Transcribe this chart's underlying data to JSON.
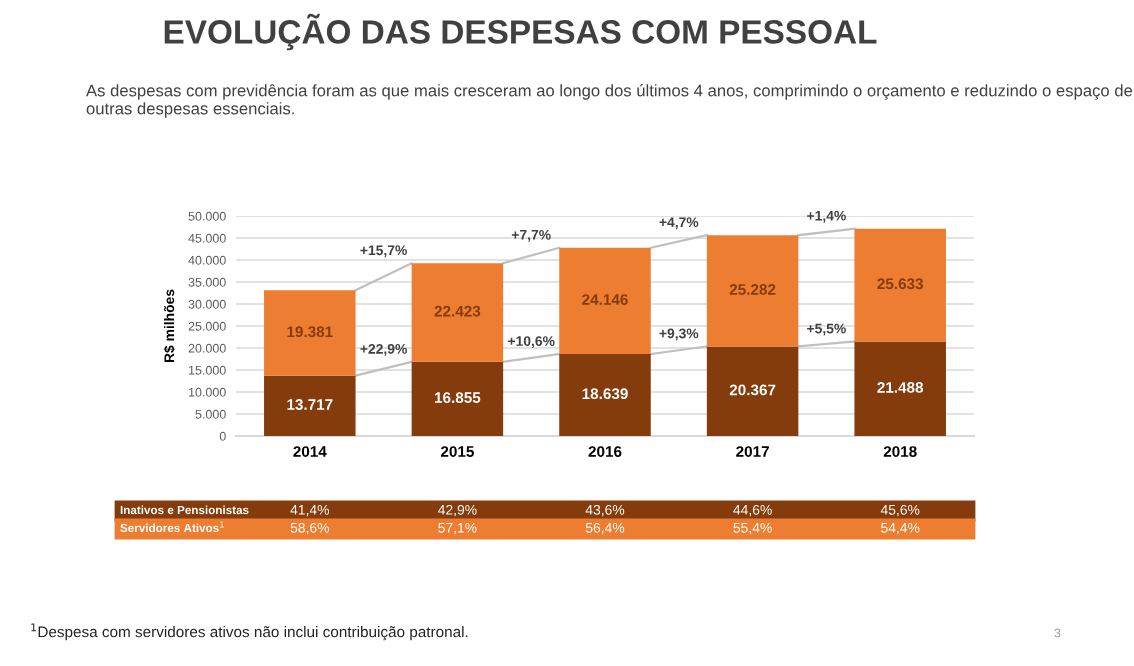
{
  "chart_data": {
    "type": "bar",
    "stacked": true,
    "title": "EVOLUÇÃO DAS DESPESAS COM PESSOAL",
    "subtitle": "As despesas com previdência foram as que mais cresceram ao longo dos últimos 4 anos, comprimindo o orçamento e reduzindo o espaço de outras despesas essenciais.",
    "ylabel": "R$ milhões",
    "categories": [
      "2014",
      "2015",
      "2016",
      "2017",
      "2018"
    ],
    "series": [
      {
        "name": "Inativos e Pensionistas",
        "color": "#843c0c",
        "values": [
          13717,
          16855,
          18639,
          20367,
          21488
        ],
        "value_labels": [
          "13.717",
          "16.855",
          "18.639",
          "20.367",
          "21.488"
        ]
      },
      {
        "name": "Servidores Ativos$^{1}$",
        "color": "#ed7d31",
        "values": [
          19381,
          22423,
          24146,
          25282,
          25633
        ],
        "value_labels": [
          "19.381",
          "22.423",
          "24.146",
          "25.282",
          "25.633"
        ]
      }
    ],
    "ylim": [
      0,
      50000
    ],
    "yticks": [
      0,
      {
        "value": 5000,
        "label": "5.000"
      },
      {
        "value": 10000,
        "label": "10.000"
      },
      {
        "value": 15000,
        "label": "15.000"
      },
      {
        "value": 20000,
        "label": "20.000"
      },
      {
        "value": 25000,
        "label": "25.000"
      },
      {
        "value": 30000,
        "label": "30.000"
      },
      {
        "value": 35000,
        "label": "35.000"
      },
      {
        "value": 40000,
        "label": "40.000"
      },
      {
        "value": 45000,
        "label": "45.000"
      },
      {
        "value": 50000,
        "label": "50.000"
      }
    ],
    "grid": "y",
    "annotations": [
      "+15,7%",
      "+7,7%",
      "+4,7%",
      "+1,4%",
      "+22,9%",
      "+10,6%",
      "+9,3%",
      "+5,5%",
      "41,4%",
      "42,9%",
      "43,6%",
      "44,6%",
      "45,6%",
      "58,6%",
      "57,1%",
      "56,4%",
      "55,4%",
      "54,4%",
      "$^{1}$Despesa com servidores ativos não inclui contribuição patronal.",
      "3"
    ]
  }
}
